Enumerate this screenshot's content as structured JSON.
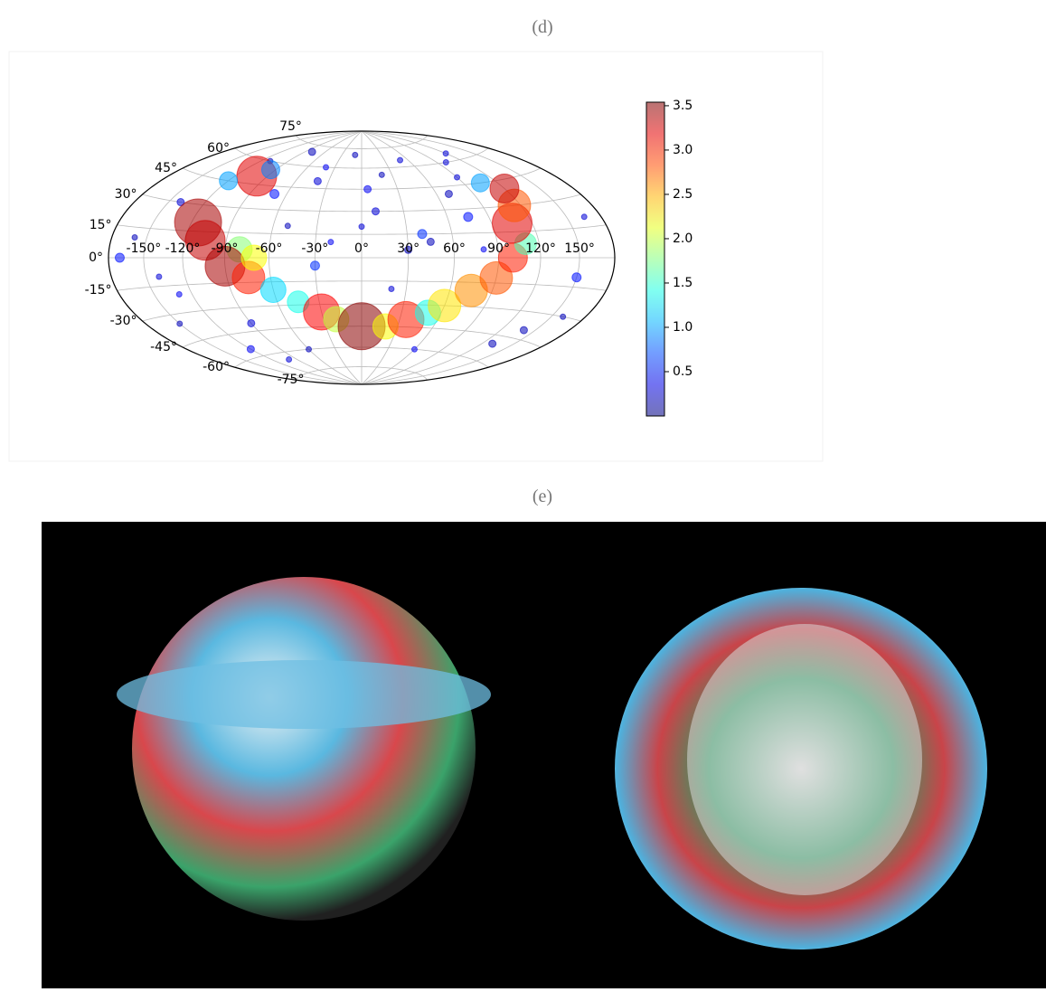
{
  "panels": {
    "d": "(d)",
    "e": "(e)"
  },
  "chart_data": {
    "type": "scatter",
    "projection": "hammer",
    "colormap": "jet",
    "grid": true,
    "lat_ticks": [
      {
        "value": 75,
        "label": "75°"
      },
      {
        "value": 60,
        "label": "60°"
      },
      {
        "value": 45,
        "label": "45°"
      },
      {
        "value": 30,
        "label": "30°"
      },
      {
        "value": 15,
        "label": "15°"
      },
      {
        "value": 0,
        "label": "0°"
      },
      {
        "value": -15,
        "label": "-15°"
      },
      {
        "value": -30,
        "label": "-30°"
      },
      {
        "value": -45,
        "label": "-45°"
      },
      {
        "value": -60,
        "label": "-60°"
      },
      {
        "value": -75,
        "label": "-75°"
      }
    ],
    "lon_ticks": [
      {
        "value": -150,
        "label": "-150°"
      },
      {
        "value": -120,
        "label": "-120°"
      },
      {
        "value": -90,
        "label": "-90°"
      },
      {
        "value": -60,
        "label": "-60°"
      },
      {
        "value": -30,
        "label": "-30°"
      },
      {
        "value": 0,
        "label": "0°"
      },
      {
        "value": 30,
        "label": "30°"
      },
      {
        "value": 60,
        "label": "60°"
      },
      {
        "value": 90,
        "label": "90°"
      },
      {
        "value": 120,
        "label": "120°"
      },
      {
        "value": 150,
        "label": "150°"
      }
    ],
    "clim": [
      0,
      3.54
    ],
    "cticks": [
      0.5,
      {
        "value": 1,
        "label": "1.0"
      },
      1.5,
      {
        "value": 2,
        "label": "2.0"
      },
      2.5,
      {
        "value": 3,
        "label": "3.0"
      },
      3.5
    ],
    "lon": [
      -160,
      -140,
      -130,
      -110,
      -90,
      -70,
      -50,
      -40,
      -20,
      -10,
      10,
      20,
      40,
      50,
      70,
      80,
      100,
      130,
      150,
      165,
      -150,
      -120,
      -100,
      -60,
      -30,
      0,
      30,
      60,
      90,
      140,
      -170,
      -140,
      -80,
      -40,
      20,
      45,
      75,
      120,
      160,
      5,
      -100,
      -120,
      -115,
      -105,
      -80,
      -90,
      -75,
      -60,
      -45,
      -30,
      -20,
      0,
      20,
      35,
      50,
      60,
      75,
      90,
      100,
      110,
      105,
      115,
      120,
      105,
      -95,
      -70
    ],
    "lat": [
      10,
      30,
      -20,
      60,
      -40,
      40,
      20,
      50,
      10,
      70,
      30,
      55,
      15,
      65,
      40,
      5,
      60,
      -50,
      -10,
      20,
      -35,
      -55,
      -65,
      -60,
      -5,
      20,
      5,
      -60,
      50,
      -40,
      0,
      -10,
      70,
      60,
      -20,
      10,
      25,
      65,
      -30,
      45,
      50,
      45,
      20,
      10,
      5,
      -5,
      -12,
      -20,
      -28,
      -35,
      -40,
      -45,
      -45,
      -40,
      -35,
      -30,
      -20,
      -12,
      0,
      8,
      20,
      30,
      40,
      45,
      55,
      0
    ],
    "values": [
      0.2,
      0.3,
      0.4,
      0.2,
      0.3,
      0.5,
      0.2,
      0.3,
      0.4,
      0.2,
      0.3,
      0.2,
      0.6,
      0.3,
      0.2,
      0.4,
      0.3,
      0.2,
      0.5,
      0.3,
      0.2,
      0.4,
      0.3,
      0.2,
      0.6,
      0.3,
      0.2,
      0.4,
      0.3,
      0.2,
      0.5,
      0.3,
      0.2,
      0.4,
      0.3,
      0.2,
      0.5,
      0.3,
      0.2,
      0.4,
      3.2,
      1.0,
      3.4,
      3.3,
      1.8,
      3.4,
      3.0,
      1.2,
      1.4,
      3.1,
      2.0,
      3.5,
      2.2,
      3.0,
      1.4,
      2.3,
      2.6,
      2.8,
      3.0,
      1.6,
      3.2,
      2.8,
      3.3,
      1.0,
      0.9,
      2.2
    ],
    "sizes": [
      3,
      4,
      3,
      3,
      4,
      5,
      3,
      4,
      3,
      3,
      4,
      3,
      5,
      3,
      4,
      3,
      3,
      4,
      5,
      3,
      3,
      4,
      3,
      3,
      5,
      3,
      4,
      3,
      3,
      4,
      5,
      3,
      4,
      3,
      3,
      4,
      5,
      3,
      3,
      4,
      22,
      10,
      26,
      22,
      14,
      22,
      18,
      14,
      12,
      20,
      14,
      26,
      14,
      20,
      14,
      18,
      18,
      18,
      16,
      12,
      22,
      18,
      16,
      10,
      10,
      14
    ]
  }
}
